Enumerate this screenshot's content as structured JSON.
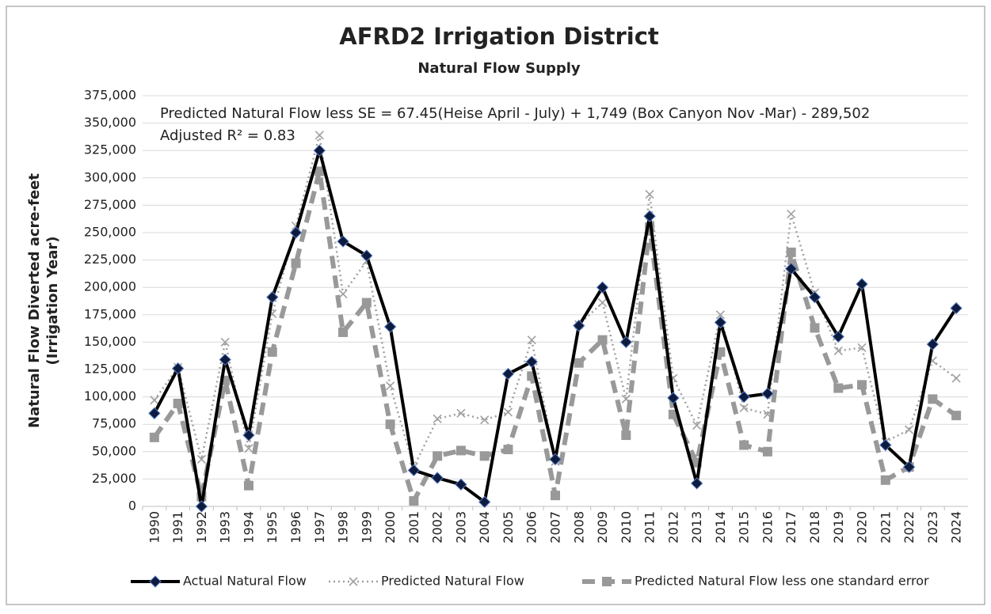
{
  "chart_data": {
    "type": "line",
    "title": "AFRD2 Irrigation District",
    "subtitle": "Natural Flow Supply",
    "ylabel": [
      "Natural Flow Diverted acre-feet",
      "(Irrigation Year)"
    ],
    "annotations": [
      "Predicted Natural Flow less SE = 67.45(Heise April - July) + 1,749 (Box Canyon Nov -Mar) - 289,502",
      "Adjusted R² = 0.83"
    ],
    "categories": [
      "1990",
      "1991",
      "1992",
      "1993",
      "1994",
      "1995",
      "1996",
      "1997",
      "1998",
      "1999",
      "2000",
      "2001",
      "2002",
      "2003",
      "2004",
      "2005",
      "2006",
      "2007",
      "2008",
      "2009",
      "2010",
      "2011",
      "2012",
      "2013",
      "2014",
      "2015",
      "2016",
      "2017",
      "2018",
      "2019",
      "2020",
      "2021",
      "2022",
      "2023",
      "2024"
    ],
    "series": [
      {
        "name": "Actual Natural Flow",
        "color": "#000000",
        "line_style": "solid",
        "marker": "diamond",
        "values": [
          85000,
          126000,
          0,
          134000,
          65000,
          191000,
          250000,
          325000,
          242000,
          229000,
          164000,
          33000,
          26000,
          20000,
          4000,
          121000,
          132000,
          43000,
          165000,
          200000,
          150000,
          265000,
          99000,
          21000,
          168000,
          100000,
          103000,
          217000,
          191000,
          155000,
          203000,
          56000,
          36000,
          148000,
          181000
        ]
      },
      {
        "name": "Predicted Natural Flow",
        "color": "#a0a0a0",
        "line_style": "dotted",
        "marker": "x",
        "values": [
          97000,
          127000,
          43000,
          150000,
          53000,
          176000,
          256000,
          339000,
          194000,
          224000,
          110000,
          36000,
          80000,
          85000,
          79000,
          86000,
          152000,
          41000,
          166000,
          186000,
          98000,
          285000,
          117000,
          74000,
          175000,
          90000,
          84000,
          267000,
          195000,
          142000,
          145000,
          59000,
          70000,
          133000,
          117000
        ]
      },
      {
        "name": "Predicted Natural Flow less one standard error",
        "color": "#999999",
        "line_style": "dashed",
        "marker": "square",
        "values": [
          63000,
          94000,
          9000,
          115000,
          19000,
          141000,
          222000,
          306000,
          159000,
          186000,
          75000,
          5000,
          46000,
          51000,
          46000,
          52000,
          119000,
          10000,
          131000,
          152000,
          65000,
          255000,
          84000,
          40000,
          141000,
          56000,
          50000,
          232000,
          163000,
          108000,
          111000,
          24000,
          36000,
          98000,
          83000
        ]
      }
    ],
    "ylim": [
      0,
      375000
    ],
    "yticks": [
      0,
      {
        "value": 25000,
        "label": "25,000"
      },
      {
        "value": 50000,
        "label": "50,000"
      },
      {
        "value": 75000,
        "label": "75,000"
      },
      {
        "value": 100000,
        "label": "100,000"
      },
      {
        "value": 125000,
        "label": "125,000"
      },
      {
        "value": 150000,
        "label": "150,000"
      },
      {
        "value": 175000,
        "label": "175,000"
      },
      {
        "value": 200000,
        "label": "200,000"
      },
      {
        "value": 225000,
        "label": "225,000"
      },
      {
        "value": 250000,
        "label": "250,000"
      },
      {
        "value": 275000,
        "label": "275,000"
      },
      {
        "value": 300000,
        "label": "300,000"
      },
      {
        "value": 325000,
        "label": "325,000"
      },
      {
        "value": 350000,
        "label": "350,000"
      },
      {
        "value": 375000,
        "label": "375,000"
      }
    ],
    "grid": true,
    "legend": "bottom"
  }
}
